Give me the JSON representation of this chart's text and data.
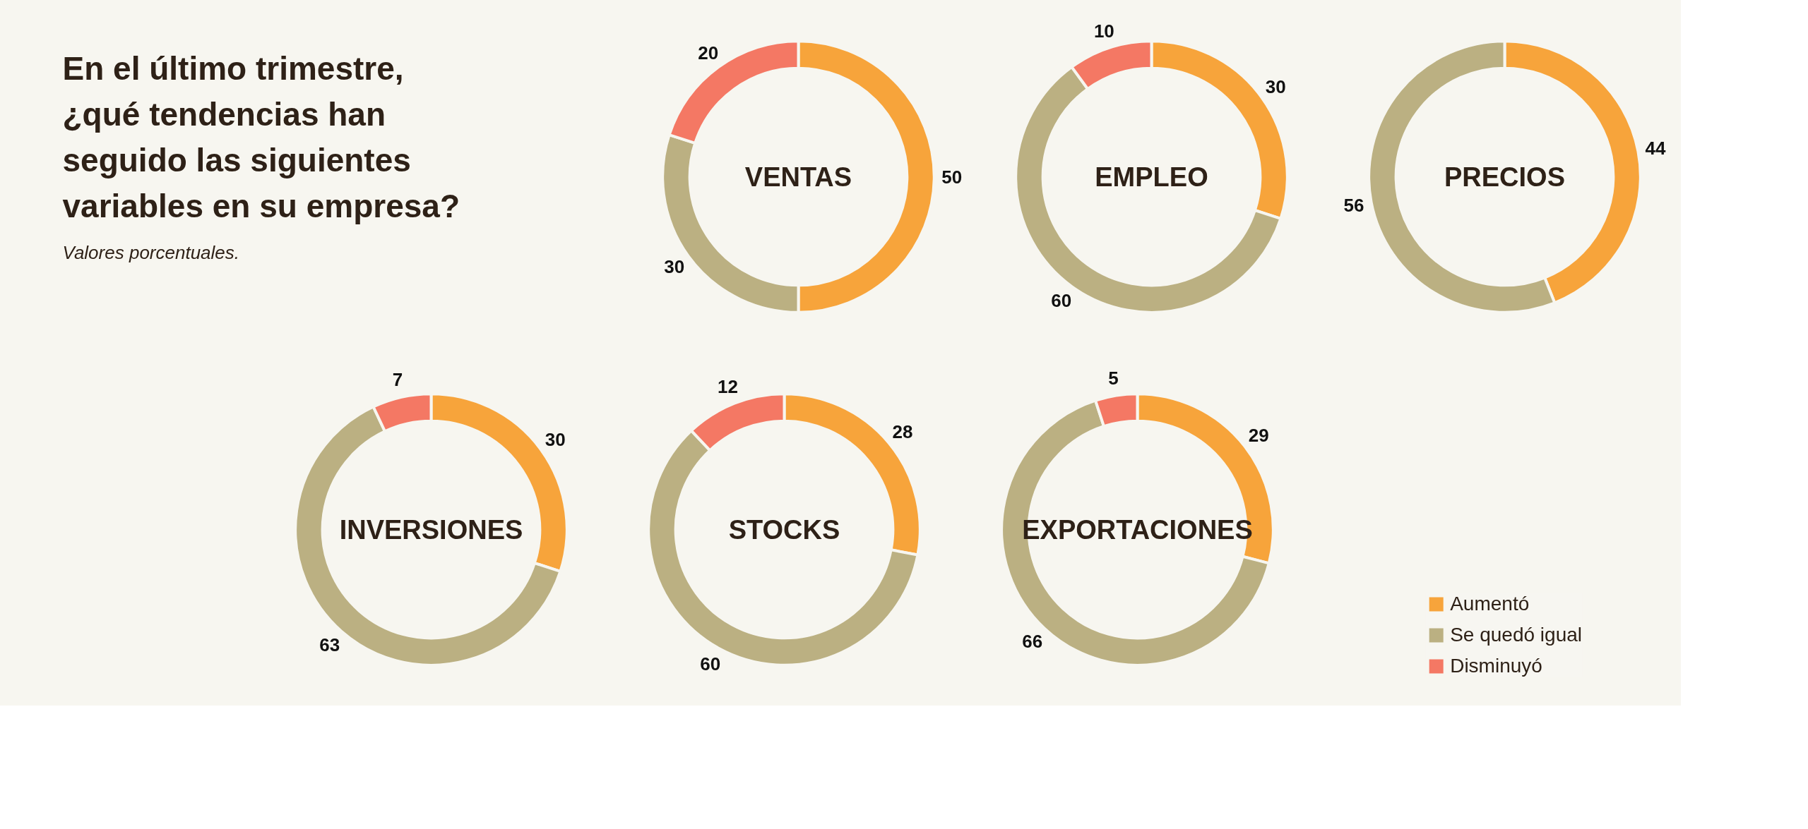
{
  "chart_data": [
    {
      "type": "other",
      "title": "En el último trimestre, ¿qué tendencias han seguido las siguientes variables en su empresa?",
      "subtitle": "Valores porcentuales."
    },
    {
      "type": "donut",
      "title": "VENTAS",
      "categories": [
        null,
        null,
        null
      ],
      "values": [
        50,
        30,
        20
      ],
      "colors": [
        "#f7a43b",
        "#bbb082",
        "#f47864"
      ],
      "data_labels": true
    },
    {
      "type": "donut",
      "title": "EMPLEO",
      "categories": [
        null,
        null,
        null
      ],
      "values": [
        30,
        60,
        10
      ],
      "colors": [
        "#f7a43b",
        "#bbb082",
        "#f47864"
      ],
      "data_labels": true
    },
    {
      "type": "donut",
      "title": "PRECIOS",
      "categories": [
        null,
        null
      ],
      "values": [
        44,
        56
      ],
      "colors": [
        "#f7a43b",
        "#bbb082"
      ],
      "data_labels": true
    },
    {
      "type": "donut",
      "title": "INVERSIONES",
      "categories": [
        null,
        null,
        null
      ],
      "values": [
        30,
        63,
        7
      ],
      "colors": [
        "#f7a43b",
        "#bbb082",
        "#f47864"
      ],
      "data_labels": true
    },
    {
      "type": "donut",
      "title": "STOCKS",
      "categories": [
        null,
        null,
        null
      ],
      "values": [
        28,
        60,
        12
      ],
      "colors": [
        "#f7a43b",
        "#bbb082",
        "#f47864"
      ],
      "data_labels": true
    },
    {
      "type": "donut",
      "title": "EXPORTACIONES",
      "categories": [
        "Aumentó",
        "Se quedó igual",
        "Disminuyó"
      ],
      "values": [
        29,
        66,
        5
      ],
      "colors": [
        "#f7a43b",
        "#bbb082",
        "#f47864"
      ],
      "data_labels": true,
      "legend": "bottom right"
    }
  ]
}
